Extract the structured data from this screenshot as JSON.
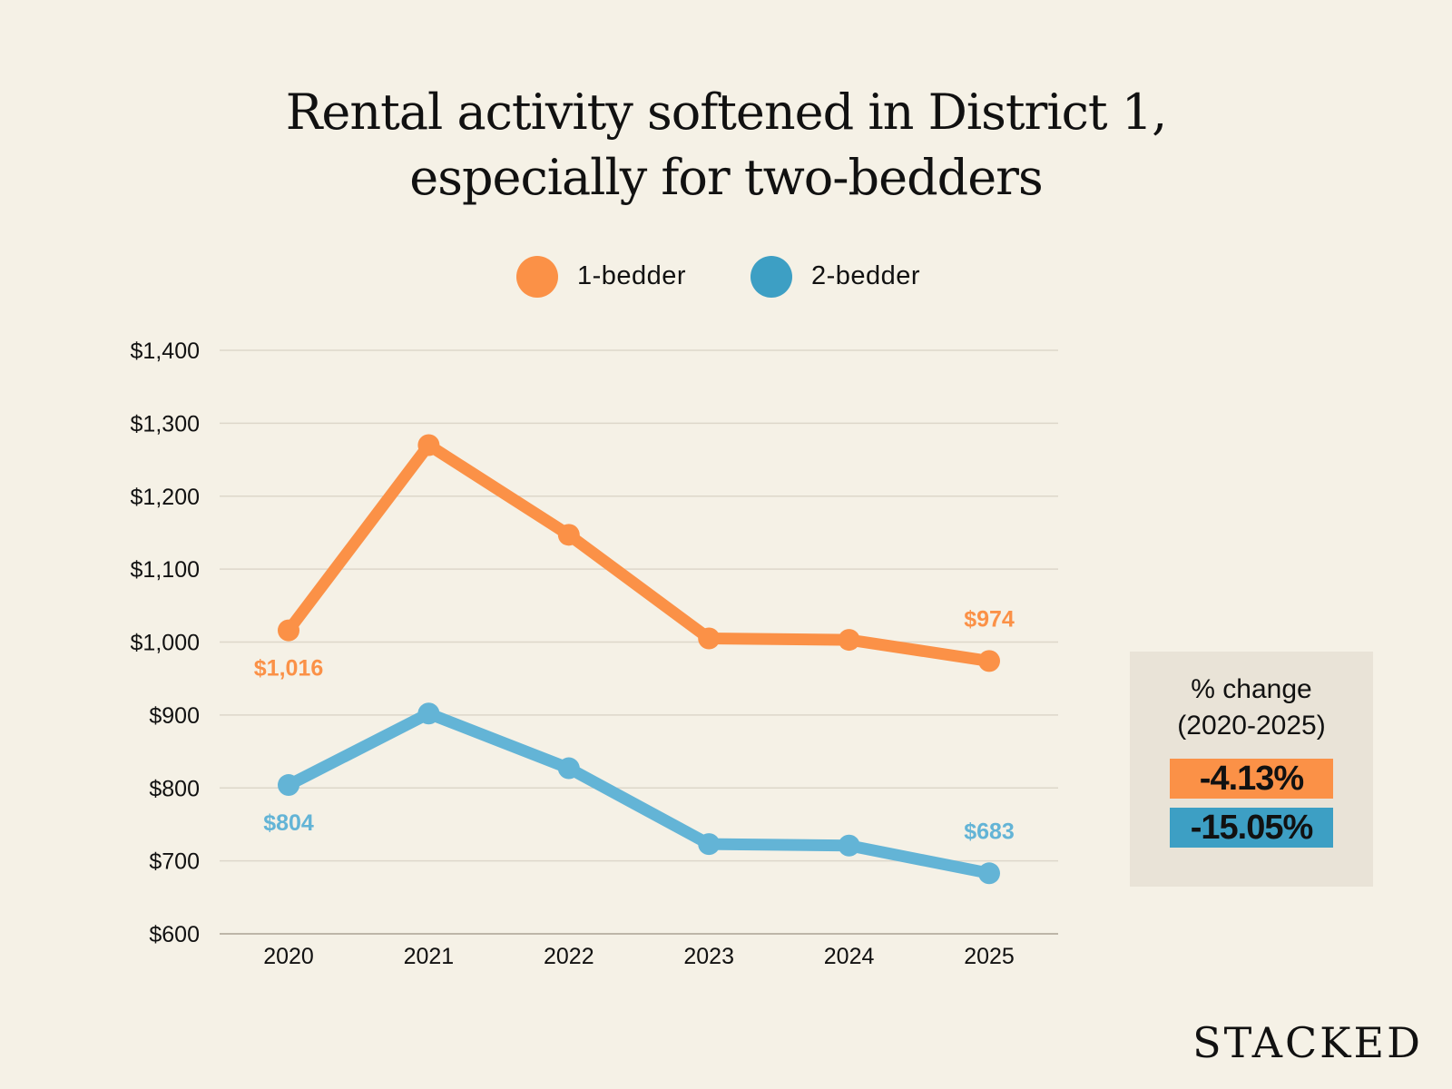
{
  "chart_data": {
    "type": "line",
    "title": "Rental activity softened in District 1, especially for two-bedders",
    "title_lines": [
      "Rental activity softened in District 1,",
      "especially for two-bedders"
    ],
    "x": [
      "2020",
      "2021",
      "2022",
      "2023",
      "2024",
      "2025"
    ],
    "series": [
      {
        "name": "1-bedder",
        "color": "#fb9147",
        "values": [
          1016,
          1270,
          1147,
          1005,
          1003,
          974
        ]
      },
      {
        "name": "2-bedder",
        "color": "#63b4d6",
        "values": [
          804,
          902,
          827,
          723,
          721,
          683
        ]
      }
    ],
    "data_labels": [
      {
        "series": 0,
        "index": 0,
        "text": "$1,016",
        "position": "below"
      },
      {
        "series": 0,
        "index": 5,
        "text": "$974",
        "position": "above"
      },
      {
        "series": 1,
        "index": 0,
        "text": "$804",
        "position": "below"
      },
      {
        "series": 1,
        "index": 5,
        "text": "$683",
        "position": "above"
      }
    ],
    "ylim": [
      600,
      1400
    ],
    "yticks": [
      600,
      700,
      800,
      900,
      1000,
      1100,
      1200,
      1300,
      1400
    ],
    "ytick_labels": [
      "$600",
      "$700",
      "$800",
      "$900",
      "$1,000",
      "$1,100",
      "$1,200",
      "$1,300",
      "$1,400"
    ],
    "grid": true,
    "legend_placement": "top-center",
    "xlabel": "",
    "ylabel": ""
  },
  "change_box": {
    "title_lines": [
      "% change",
      "(2020-2025)"
    ],
    "values": [
      {
        "text": "-4.13%",
        "color": "#fb9147"
      },
      {
        "text": "-15.05%",
        "color": "#3d9fc4"
      }
    ]
  },
  "legend_colors": [
    "#fb9147",
    "#3d9fc4"
  ],
  "brand": "STACKED"
}
